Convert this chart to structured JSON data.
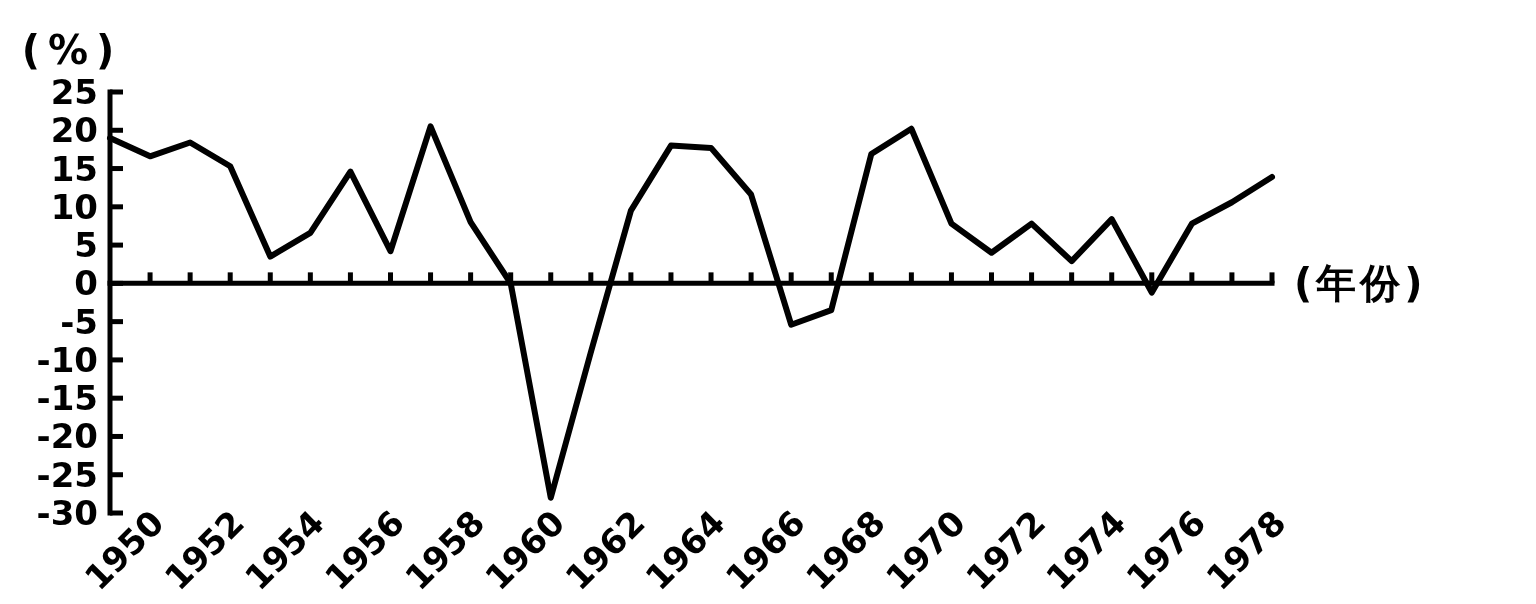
{
  "chart_data": {
    "type": "line",
    "xlabel": "(年份)",
    "ylabel": "(%)",
    "x": [
      1949,
      1950,
      1951,
      1952,
      1953,
      1954,
      1955,
      1956,
      1957,
      1958,
      1959,
      1960,
      1961,
      1962,
      1963,
      1964,
      1965,
      1966,
      1967,
      1968,
      1969,
      1970,
      1971,
      1972,
      1973,
      1974,
      1975,
      1976,
      1977,
      1978
    ],
    "values": [
      19,
      16.6,
      18.4,
      15.3,
      3.5,
      6.6,
      14.6,
      4.2,
      20.5,
      8,
      0,
      -28,
      -9,
      9.5,
      18,
      17.7,
      11.6,
      -5.4,
      -3.5,
      16.9,
      20.2,
      7.8,
      4,
      7.8,
      2.9,
      8.4,
      -1.2,
      7.8,
      10.6,
      13.9
    ],
    "color": "#000000",
    "xlim": [
      1949,
      1978
    ],
    "ylim": [
      -30,
      25
    ],
    "xticks": [
      1950,
      {
        "value": 1951,
        "label": null
      },
      1952,
      {
        "value": 1953,
        "label": null
      },
      1954,
      {
        "value": 1955,
        "label": null
      },
      1956,
      {
        "value": 1957,
        "label": null
      },
      1958,
      {
        "value": 1959,
        "label": null
      },
      1960,
      {
        "value": 1961,
        "label": null
      },
      1962,
      {
        "value": 1963,
        "label": null
      },
      1964,
      {
        "value": 1965,
        "label": null
      },
      1966,
      {
        "value": 1967,
        "label": null
      },
      1968,
      {
        "value": 1969,
        "label": null
      },
      1970,
      {
        "value": 1971,
        "label": null
      },
      1972,
      {
        "value": 1973,
        "label": null
      },
      1974,
      {
        "value": 1975,
        "label": null
      },
      1976,
      {
        "value": 1977,
        "label": null
      },
      1978
    ],
    "yticks": [
      -30,
      -25,
      -20,
      -15,
      -10,
      -5,
      0,
      5,
      10,
      15,
      20,
      25
    ]
  }
}
